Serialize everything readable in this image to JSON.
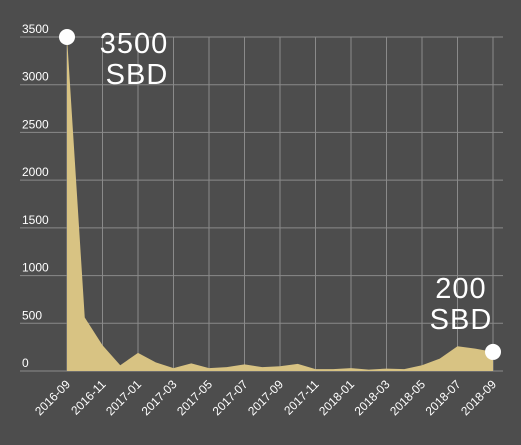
{
  "chart_data": {
    "type": "area",
    "unit": "SBD",
    "colors": {
      "background": "#4d4d4d",
      "fill": "#d8c383",
      "grid": "#8a8a8a",
      "text": "#ffffff",
      "marker": "#ffffff"
    },
    "grid": true,
    "ylim": [
      0,
      3500
    ],
    "yticks": [
      "0",
      "500",
      "1000",
      "1500",
      "2000",
      "2500",
      "3000",
      "3500"
    ],
    "xticks": [
      "2016-09",
      "2016-11",
      "2017-01",
      "2017-03",
      "2017-05",
      "2017-07",
      "2017-09",
      "2017-11",
      "2018-01",
      "2018-03",
      "2018-05",
      "2018-07",
      "2018-09"
    ],
    "x": [
      "2016-09",
      "2016-10",
      "2016-11",
      "2016-12",
      "2017-01",
      "2017-02",
      "2017-03",
      "2017-04",
      "2017-05",
      "2017-06",
      "2017-07",
      "2017-08",
      "2017-09",
      "2017-10",
      "2017-11",
      "2017-12",
      "2018-01",
      "2018-02",
      "2018-03",
      "2018-04",
      "2018-05",
      "2018-06",
      "2018-07",
      "2018-08",
      "2018-09"
    ],
    "values": [
      3500,
      560,
      270,
      60,
      190,
      90,
      30,
      80,
      30,
      40,
      70,
      40,
      50,
      75,
      20,
      20,
      30,
      15,
      25,
      20,
      60,
      130,
      260,
      235,
      200
    ],
    "annotations": [
      {
        "value_label": "3500",
        "unit_label": "SBD",
        "index": 0
      },
      {
        "value_label": "200",
        "unit_label": "SBD",
        "index": 24
      }
    ]
  }
}
